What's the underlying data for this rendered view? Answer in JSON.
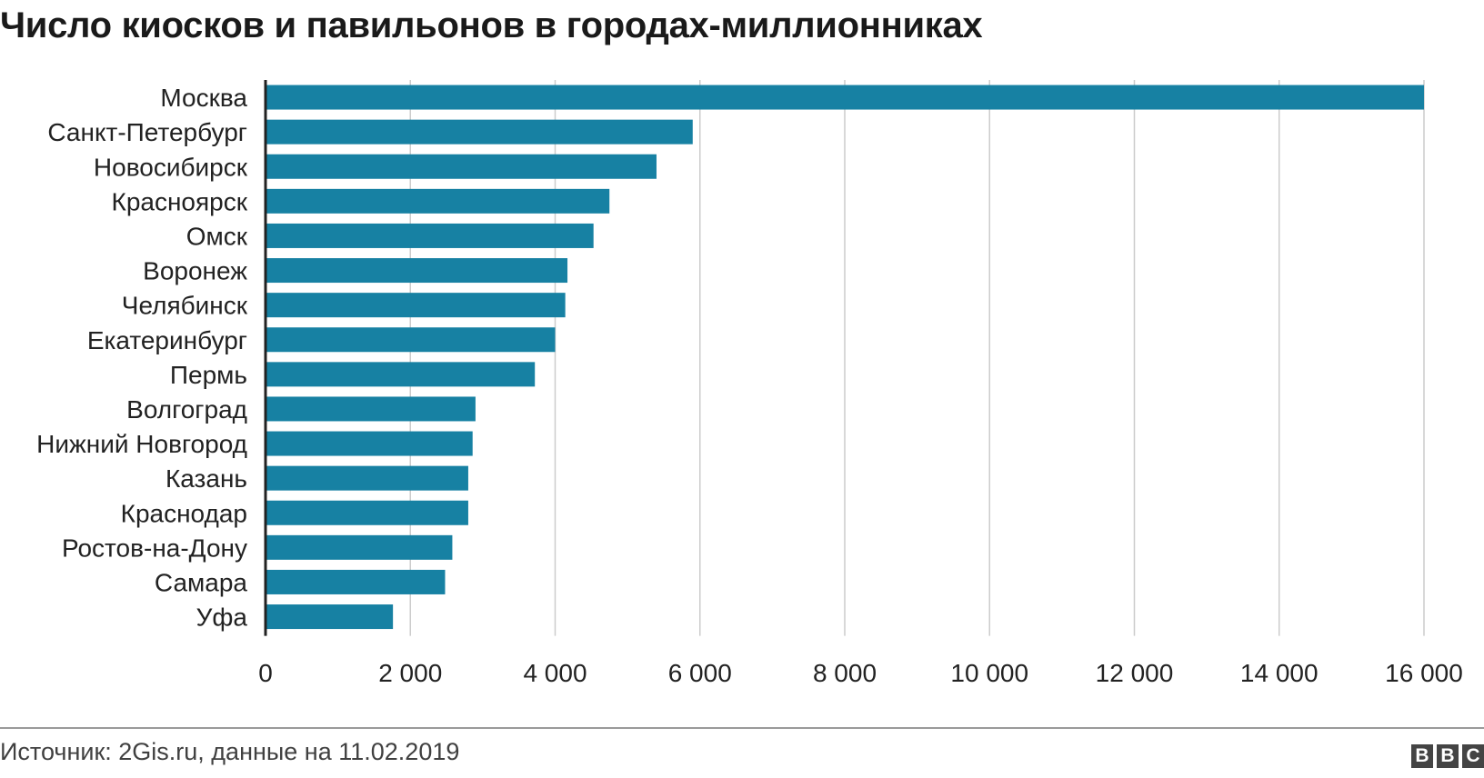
{
  "title": "Число киосков и павильонов в городах-миллионниках",
  "source": "Источник: 2Gis.ru, данные на 11.02.2019",
  "logo": [
    "B",
    "B",
    "C"
  ],
  "colors": {
    "bar": "#1781a3",
    "grid": "#cccccc",
    "axis": "#222222",
    "text": "#222222"
  },
  "chart_data": {
    "type": "bar",
    "orientation": "horizontal",
    "categories": [
      "Москва",
      "Санкт-Петербург",
      "Новосибирск",
      "Красноярск",
      "Омск",
      "Воронеж",
      "Челябинск",
      "Екатеринбург",
      "Пермь",
      "Волгоград",
      "Нижний Новгород",
      "Казань",
      "Краснодар",
      "Ростов-на-Дону",
      "Самара",
      "Уфа"
    ],
    "values": [
      16000,
      5900,
      5400,
      4750,
      4530,
      4170,
      4140,
      4000,
      3720,
      2900,
      2860,
      2800,
      2800,
      2580,
      2480,
      1760
    ],
    "xlim": [
      0,
      16000
    ],
    "xticks": [
      0,
      2000,
      4000,
      6000,
      8000,
      10000,
      12000,
      14000,
      16000
    ],
    "xtick_labels": [
      "0",
      "2 000",
      "4 000",
      "6 000",
      "8 000",
      "10 000",
      "12 000",
      "14 000",
      "16 000"
    ],
    "grid": true,
    "legend": "none"
  }
}
